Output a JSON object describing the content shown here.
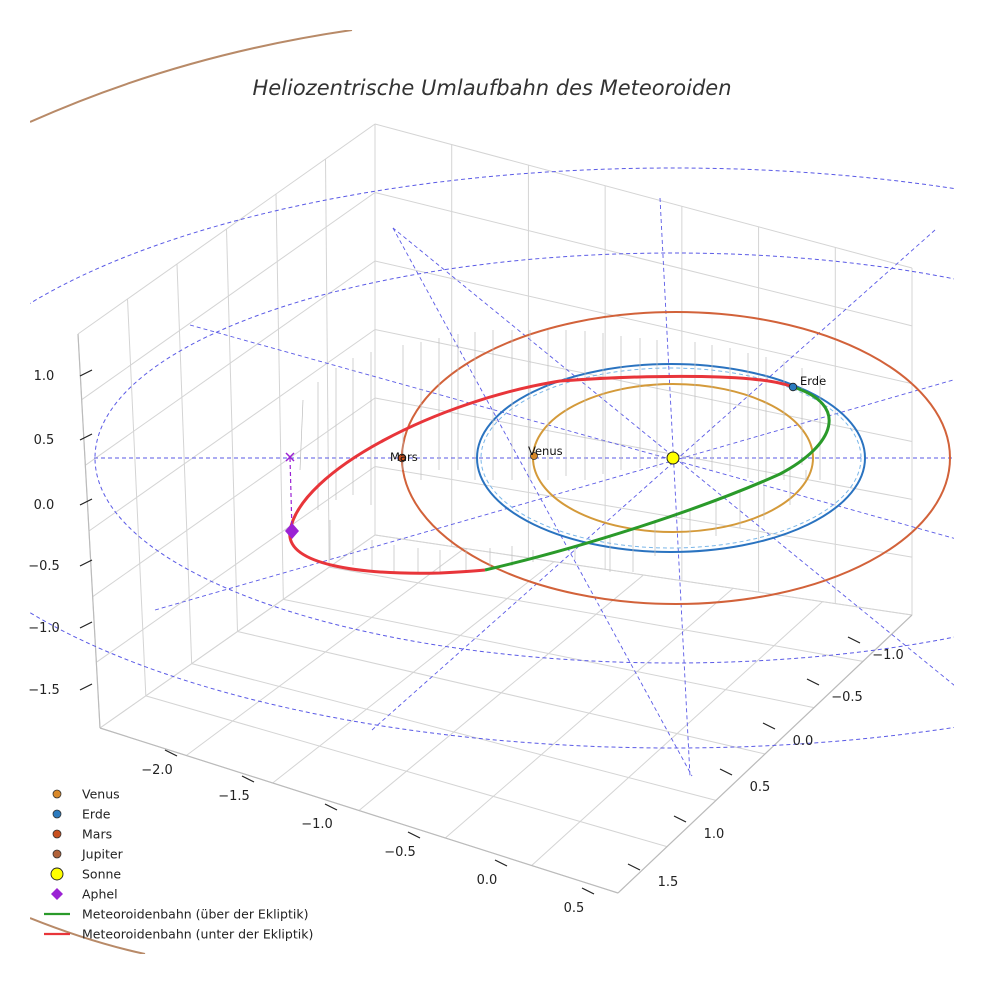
{
  "chart_data": {
    "type": "line",
    "projection": "3d",
    "title": "Heliozentrische Umlaufbahn des Meteoroiden",
    "xlabel": "",
    "ylabel": "",
    "zlabel": "",
    "grid": true,
    "legend_position": "bottom-left",
    "x_ticks": [
      "−2.0",
      "−1.5",
      "−1.0",
      "−0.5",
      "0.0",
      "0.5"
    ],
    "y_ticks": [
      "−1.0",
      "−0.5",
      "0.0",
      "0.5",
      "1.0",
      "1.5"
    ],
    "z_ticks": [
      "1.0",
      "0.5",
      "0.0",
      "−0.5",
      "−1.0",
      "−1.5"
    ],
    "xlim": [
      -2.3,
      0.7
    ],
    "ylim": [
      -1.3,
      1.7
    ],
    "zlim": [
      -1.8,
      1.3
    ],
    "orbit_radii_au": {
      "venus": 0.72,
      "earth": 1.0,
      "mars": 1.52,
      "jupiter": 5.2
    },
    "reference_circles_au": [
      1.8,
      2.7
    ],
    "meteoroid_orbit": {
      "aphelion_au": 2.23,
      "perihelion_au": 0.98,
      "aphelion_z_au": -0.45,
      "aphelion_xy_au": [
        -2.23,
        0.0
      ]
    },
    "labels": {
      "venus": "Venus",
      "earth": "Erde",
      "mars": "Mars"
    },
    "colors": {
      "venus": "#d49a3a",
      "earth": "#2a73c0",
      "mars": "#d2623a",
      "jupiter": "#b88a68",
      "sun": "#ffff00",
      "aphelion": "#9b22d4",
      "above": "#2a9a2a",
      "below": "#e8353a",
      "reference": "#5a5ae6"
    },
    "legend": [
      {
        "label": "Venus",
        "marker": "circle",
        "color": "#d9892a"
      },
      {
        "label": "Erde",
        "marker": "circle",
        "color": "#2b7bbf"
      },
      {
        "label": "Mars",
        "marker": "circle",
        "color": "#c8501f"
      },
      {
        "label": "Jupiter",
        "marker": "circle",
        "color": "#b0623a"
      },
      {
        "label": "Sonne",
        "marker": "circle-large",
        "color": "#ffff00"
      },
      {
        "label": "Aphel",
        "marker": "diamond",
        "color": "#9b22d4"
      },
      {
        "label": "Meteoroidenbahn (über der Ekliptik)",
        "marker": "line",
        "color": "#2a9a2a"
      },
      {
        "label": "Meteoroidenbahn (unter der Ekliptik)",
        "marker": "line",
        "color": "#e8353a"
      }
    ]
  }
}
